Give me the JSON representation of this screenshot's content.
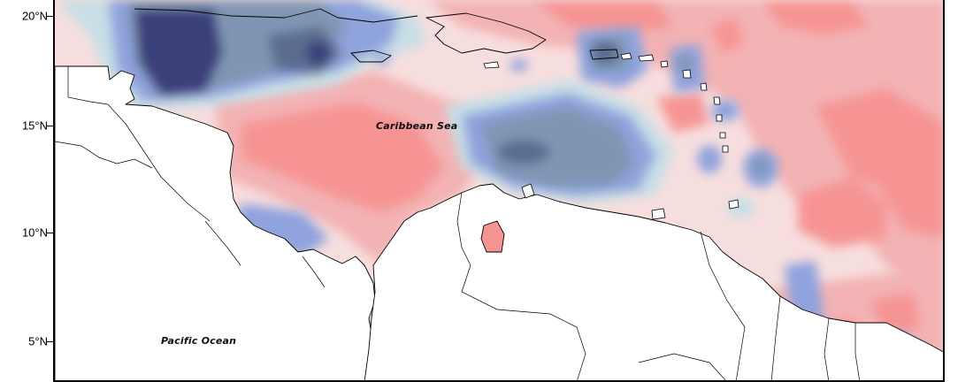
{
  "map": {
    "axis": {
      "latitude_labels": [
        "20°N",
        "15°N",
        "10°N",
        "5°N"
      ]
    },
    "labels": {
      "sea": "Caribbean Sea",
      "ocean": "Pacific Ocean"
    },
    "colors": {
      "strong_negative": "#3b3f7a",
      "negative": "#5a6d8f",
      "moderate_negative": "#7f96b3",
      "light_negative": "#8fa3dd",
      "weak_negative": "#c7dfe6",
      "neutral": "#f7dede",
      "weak_positive": "#f2c7c9",
      "positive": "#f3b2b4",
      "strong_positive": "#f69494",
      "land": "#ffffff",
      "coastline": "#000000"
    }
  }
}
